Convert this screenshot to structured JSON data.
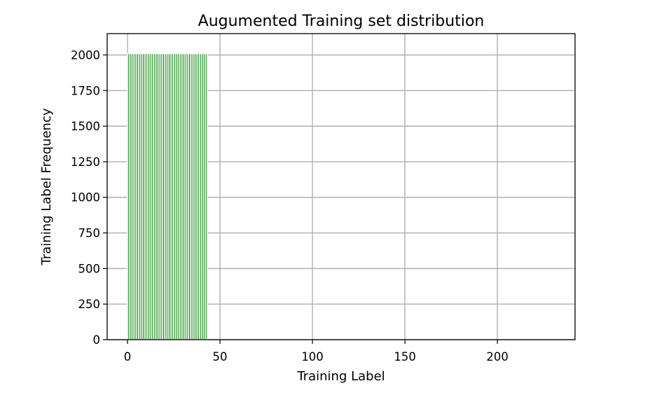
{
  "chart_data": {
    "type": "bar",
    "title": "Augumented Training set distribution",
    "xlabel": "Training Label",
    "ylabel": "Training Label Frequency",
    "xlim": [
      -11,
      242
    ],
    "ylim": [
      0,
      2150
    ],
    "xticks": [
      0,
      50,
      100,
      150,
      200
    ],
    "yticks": [
      0,
      250,
      500,
      750,
      1000,
      1250,
      1500,
      1750,
      2000
    ],
    "grid": true,
    "bar_color": "#008000",
    "bar_edge_color": "#ffffff",
    "x": [
      0,
      1,
      2,
      3,
      4,
      5,
      6,
      7,
      8,
      9,
      10,
      11,
      12,
      13,
      14,
      15,
      16,
      17,
      18,
      19,
      20,
      21,
      22,
      23,
      24,
      25,
      26,
      27,
      28,
      29,
      30,
      31,
      32,
      33,
      34,
      35,
      36,
      37,
      38,
      39,
      40,
      41,
      42
    ],
    "values": [
      2010,
      2010,
      2010,
      2010,
      2010,
      2010,
      2010,
      2010,
      2010,
      2010,
      2010,
      2010,
      2010,
      2010,
      2010,
      2010,
      2010,
      2010,
      2010,
      2010,
      2010,
      2010,
      2010,
      2010,
      2010,
      2010,
      2010,
      2010,
      2010,
      2010,
      2010,
      2010,
      2010,
      2010,
      2010,
      2010,
      2010,
      2010,
      2010,
      2010,
      2010,
      2010,
      2010
    ]
  }
}
